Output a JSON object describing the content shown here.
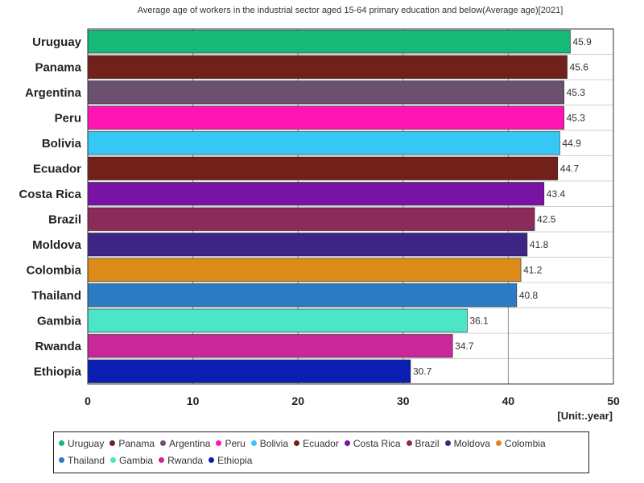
{
  "chart_data": {
    "type": "bar",
    "orientation": "horizontal",
    "title": "Average age of workers in the industrial sector aged 15-64 primary education and below(Average age)[2021]",
    "unit": "[Unit:.year]",
    "categories": [
      "Uruguay",
      "Panama",
      "Argentina",
      "Peru",
      "Bolivia",
      "Ecuador",
      "Costa Rica",
      "Brazil",
      "Moldova",
      "Colombia",
      "Thailand",
      "Gambia",
      "Rwanda",
      "Ethiopia"
    ],
    "values": [
      45.9,
      45.6,
      45.3,
      45.3,
      44.9,
      44.7,
      43.4,
      42.5,
      41.8,
      41.2,
      40.8,
      36.1,
      34.7,
      30.7
    ],
    "colors": [
      "#17b978",
      "#72201a",
      "#6b5070",
      "#ff14b4",
      "#35c8f5",
      "#72201a",
      "#7a13a5",
      "#8a2b5a",
      "#3d2585",
      "#dc8a18",
      "#2b7cc3",
      "#4be6c8",
      "#c8289a",
      "#0a1eb4"
    ],
    "xlim": [
      0,
      50
    ],
    "xticks": [
      0,
      10,
      20,
      30,
      40,
      50
    ],
    "grid": true,
    "legend_position": "bottom"
  }
}
